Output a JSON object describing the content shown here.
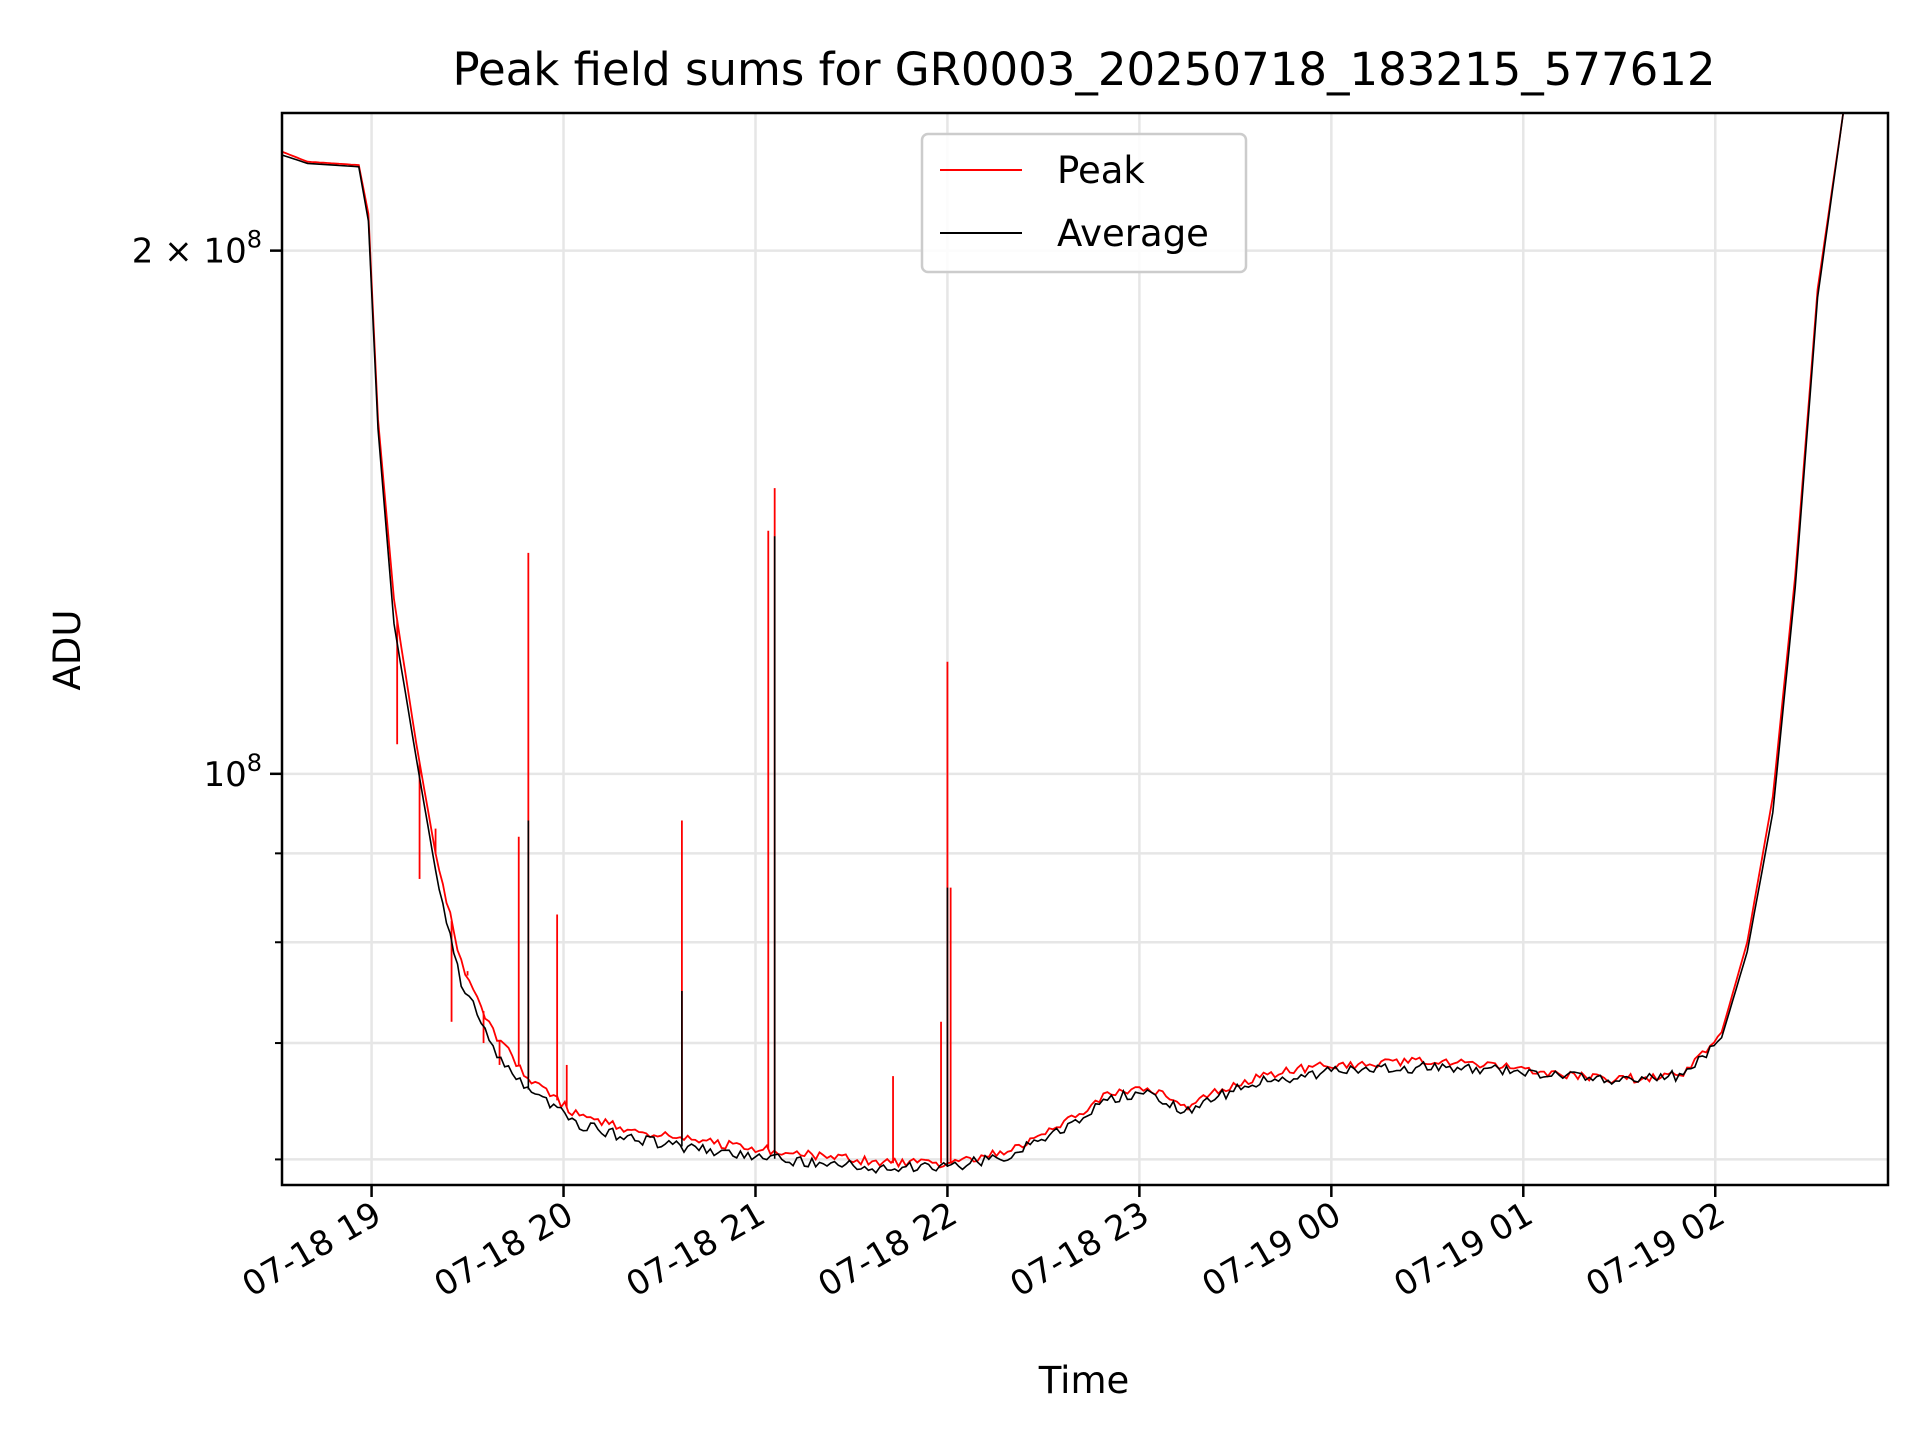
{
  "chart_data": {
    "type": "line",
    "title": "Peak field sums for GR0003_20250718_183215_577612",
    "xlabel": "Time",
    "ylabel": "ADU",
    "y_scale": "log",
    "grid": true,
    "legend_position": "upper center",
    "xlim": [
      "07-18 18:32",
      "07-19 02:54"
    ],
    "ylim": [
      58000000,
      240000000
    ],
    "x_ticks": [
      {
        "t": "07-18 19:00",
        "label": "07-18 19"
      },
      {
        "t": "07-18 20:00",
        "label": "07-18 20"
      },
      {
        "t": "07-18 21:00",
        "label": "07-18 21"
      },
      {
        "t": "07-18 22:00",
        "label": "07-18 22"
      },
      {
        "t": "07-18 23:00",
        "label": "07-18 23"
      },
      {
        "t": "07-19 00:00",
        "label": "07-19 00"
      },
      {
        "t": "07-19 01:00",
        "label": "07-19 01"
      },
      {
        "t": "07-19 02:00",
        "label": "07-19 02"
      }
    ],
    "y_major_ticks": [
      {
        "value": 100000000,
        "label_base": "10",
        "label_exp": "8",
        "label_prefix": ""
      },
      {
        "value": 200000000,
        "label_base": "10",
        "label_exp": "8",
        "label_prefix": "2 × "
      }
    ],
    "y_minor_ticks": [
      60000000,
      70000000,
      80000000,
      90000000
    ],
    "series": [
      {
        "name": "Peak",
        "color": "#ff0000",
        "points": [
          [
            "07-18 18:32",
            228000000
          ],
          [
            "07-18 18:40",
            225000000
          ],
          [
            "07-18 18:56",
            224000000
          ],
          [
            "07-18 18:59",
            210000000
          ],
          [
            "07-18 19:02",
            160000000
          ],
          [
            "07-18 19:07",
            126000000
          ],
          [
            "07-18 19:14",
            104000000
          ],
          [
            "07-18 19:20",
            90000000
          ],
          [
            "07-18 19:28",
            78000000
          ],
          [
            "07-18 19:38",
            71000000
          ],
          [
            "07-18 19:50",
            66500000
          ],
          [
            "07-18 20:05",
            63500000
          ],
          [
            "07-18 20:20",
            62500000
          ],
          [
            "07-18 20:40",
            61500000
          ],
          [
            "07-18 21:00",
            60900000
          ],
          [
            "07-18 21:20",
            60300000
          ],
          [
            "07-18 21:40",
            59700000
          ],
          [
            "07-18 22:00",
            59700000
          ],
          [
            "07-18 22:20",
            60800000
          ],
          [
            "07-18 22:40",
            63500000
          ],
          [
            "07-18 22:50",
            65500000
          ],
          [
            "07-18 23:00",
            66000000
          ],
          [
            "07-18 23:05",
            65700000
          ],
          [
            "07-18 23:14",
            64200000
          ],
          [
            "07-18 23:20",
            65400000
          ],
          [
            "07-18 23:40",
            67200000
          ],
          [
            "07-19 00:00",
            68000000
          ],
          [
            "07-19 00:30",
            68300000
          ],
          [
            "07-19 00:50",
            68000000
          ],
          [
            "07-19 01:10",
            67200000
          ],
          [
            "07-19 01:30",
            66700000
          ],
          [
            "07-19 01:50",
            67200000
          ],
          [
            "07-19 02:02",
            71000000
          ],
          [
            "07-19 02:10",
            80000000
          ],
          [
            "07-19 02:18",
            97000000
          ],
          [
            "07-19 02:25",
            130000000
          ],
          [
            "07-19 02:32",
            190000000
          ],
          [
            "07-19 02:40",
            240000000
          ],
          [
            "07-19 02:54",
            240000000
          ]
        ],
        "spikes": [
          [
            "07-18 19:08",
            104000000
          ],
          [
            "07-18 19:15",
            87000000
          ],
          [
            "07-18 19:20",
            93000000
          ],
          [
            "07-18 19:25",
            72000000
          ],
          [
            "07-18 19:30",
            77000000
          ],
          [
            "07-18 19:35",
            70000000
          ],
          [
            "07-18 19:40",
            68000000
          ],
          [
            "07-18 19:46",
            92000000
          ],
          [
            "07-18 19:49",
            134000000
          ],
          [
            "07-18 19:58",
            83000000
          ],
          [
            "07-18 20:01",
            68000000
          ],
          [
            "07-18 20:37",
            94000000
          ],
          [
            "07-18 21:04",
            138000000
          ],
          [
            "07-18 21:06",
            146000000
          ],
          [
            "07-18 21:43",
            67000000
          ],
          [
            "07-18 21:58",
            72000000
          ],
          [
            "07-18 22:00",
            116000000
          ],
          [
            "07-18 22:01",
            86000000
          ]
        ]
      },
      {
        "name": "Average",
        "color": "#000000",
        "points": [
          [
            "07-18 18:32",
            227000000
          ],
          [
            "07-18 18:40",
            224500000
          ],
          [
            "07-18 18:56",
            223500000
          ],
          [
            "07-18 18:59",
            208000000
          ],
          [
            "07-18 19:02",
            158000000
          ],
          [
            "07-18 19:07",
            122000000
          ],
          [
            "07-18 19:14",
            102000000
          ],
          [
            "07-18 19:20",
            88000000
          ],
          [
            "07-18 19:28",
            76000000
          ],
          [
            "07-18 19:38",
            69500000
          ],
          [
            "07-18 19:50",
            65500000
          ],
          [
            "07-18 20:05",
            62800000
          ],
          [
            "07-18 20:20",
            61800000
          ],
          [
            "07-18 20:40",
            60900000
          ],
          [
            "07-18 21:00",
            60200000
          ],
          [
            "07-18 21:20",
            59700000
          ],
          [
            "07-18 21:40",
            59300000
          ],
          [
            "07-18 22:00",
            59400000
          ],
          [
            "07-18 22:20",
            60400000
          ],
          [
            "07-18 22:40",
            63000000
          ],
          [
            "07-18 22:50",
            64900000
          ],
          [
            "07-18 23:00",
            65600000
          ],
          [
            "07-18 23:05",
            65300000
          ],
          [
            "07-18 23:14",
            63800000
          ],
          [
            "07-18 23:20",
            64900000
          ],
          [
            "07-18 23:40",
            66600000
          ],
          [
            "07-19 00:00",
            67400000
          ],
          [
            "07-19 00:30",
            67800000
          ],
          [
            "07-19 00:50",
            67600000
          ],
          [
            "07-19 01:10",
            67000000
          ],
          [
            "07-19 01:30",
            66600000
          ],
          [
            "07-19 01:50",
            67100000
          ],
          [
            "07-19 02:02",
            70500000
          ],
          [
            "07-19 02:10",
            79000000
          ],
          [
            "07-19 02:18",
            95000000
          ],
          [
            "07-19 02:25",
            128000000
          ],
          [
            "07-19 02:32",
            188000000
          ],
          [
            "07-19 02:40",
            240000000
          ],
          [
            "07-19 02:54",
            240000000
          ]
        ],
        "spikes": [
          [
            "07-18 19:49",
            94000000
          ],
          [
            "07-18 20:37",
            75000000
          ],
          [
            "07-18 21:06",
            137000000
          ],
          [
            "07-18 22:00",
            86000000
          ]
        ]
      }
    ]
  }
}
